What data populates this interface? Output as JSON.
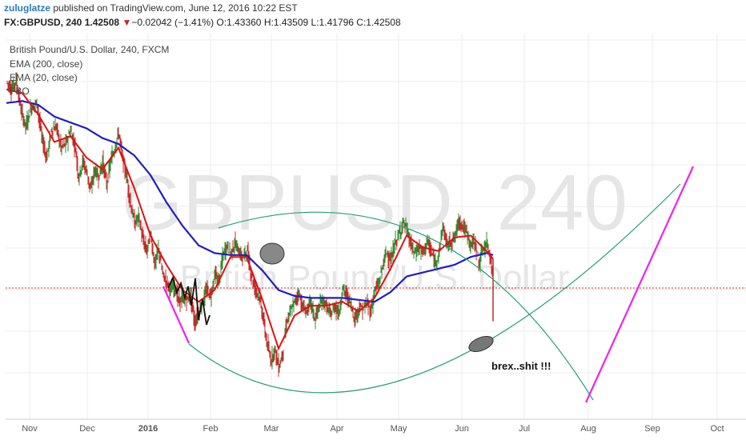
{
  "header": {
    "user": "zuluglatze",
    "published_text": "published on TradingView.com, June 12, 2016 10:22 EST",
    "symbol": "FX:GBPUSD, 240",
    "price": "1.42508",
    "change_arrow": "▼",
    "change": "−0.02042 (−1.41%)",
    "open": "O:1.43360",
    "high": "H:1.43509",
    "low": "L:1.41796",
    "close": "C:1.42508"
  },
  "legend": {
    "title": "British Pound/U.S. Dollar, 240, FXCM",
    "ema200": "EMA (200, close)",
    "ema20": "EMA (20, close)",
    "third": "FBO"
  },
  "watermark": {
    "line1": "GBPUSD, 240",
    "line2": "British Pound/U.S. Dollar"
  },
  "annotation": "brex..shit !!!",
  "colors": {
    "candle_up": "#2e8b2e",
    "candle_down": "#c62828",
    "ema200": "#1e1ec8",
    "ema20": "#e01010",
    "cup_arc": "#26a07a",
    "magenta": "#ee22ee",
    "price_line": "#e02020",
    "grid": "#eeeeee"
  },
  "chart_data": {
    "type": "line",
    "x_labels": [
      "Nov",
      "Dec",
      "2016",
      "Feb",
      "Mar",
      "Apr",
      "May",
      "Jun",
      "Jul",
      "Aug",
      "Sep",
      "Oct"
    ],
    "price_series": [
      [
        0,
        1.531
      ],
      [
        6,
        1.527
      ],
      [
        12,
        1.532
      ],
      [
        18,
        1.516
      ],
      [
        24,
        1.508
      ],
      [
        30,
        1.517
      ],
      [
        38,
        1.52
      ],
      [
        44,
        1.502
      ],
      [
        50,
        1.492
      ],
      [
        56,
        1.506
      ],
      [
        62,
        1.508
      ],
      [
        68,
        1.497
      ],
      [
        74,
        1.499
      ],
      [
        80,
        1.506
      ],
      [
        86,
        1.497
      ],
      [
        90,
        1.482
      ],
      [
        95,
        1.49
      ],
      [
        100,
        1.485
      ],
      [
        105,
        1.475
      ],
      [
        110,
        1.486
      ],
      [
        115,
        1.482
      ],
      [
        120,
        1.49
      ],
      [
        125,
        1.478
      ],
      [
        130,
        1.49
      ],
      [
        135,
        1.497
      ],
      [
        140,
        1.505
      ],
      [
        145,
        1.491
      ],
      [
        150,
        1.482
      ],
      [
        155,
        1.468
      ],
      [
        160,
        1.458
      ],
      [
        165,
        1.462
      ],
      [
        170,
        1.45
      ],
      [
        175,
        1.444
      ],
      [
        180,
        1.453
      ],
      [
        185,
        1.437
      ],
      [
        190,
        1.445
      ],
      [
        195,
        1.432
      ],
      [
        200,
        1.428
      ],
      [
        205,
        1.424
      ],
      [
        210,
        1.426
      ],
      [
        215,
        1.418
      ],
      [
        220,
        1.42
      ],
      [
        225,
        1.419
      ],
      [
        230,
        1.421
      ],
      [
        235,
        1.407
      ],
      [
        240,
        1.413
      ],
      [
        245,
        1.418
      ],
      [
        250,
        1.424
      ],
      [
        255,
        1.421
      ],
      [
        260,
        1.432
      ],
      [
        265,
        1.428
      ],
      [
        270,
        1.441
      ],
      [
        275,
        1.447
      ],
      [
        280,
        1.443
      ],
      [
        285,
        1.448
      ],
      [
        290,
        1.444
      ],
      [
        295,
        1.44
      ],
      [
        300,
        1.445
      ],
      [
        305,
        1.433
      ],
      [
        310,
        1.425
      ],
      [
        315,
        1.422
      ],
      [
        320,
        1.411
      ],
      [
        325,
        1.397
      ],
      [
        330,
        1.388
      ],
      [
        335,
        1.394
      ],
      [
        340,
        1.384
      ],
      [
        345,
        1.392
      ],
      [
        350,
        1.408
      ],
      [
        355,
        1.413
      ],
      [
        360,
        1.418
      ],
      [
        365,
        1.423
      ],
      [
        370,
        1.415
      ],
      [
        375,
        1.413
      ],
      [
        380,
        1.418
      ],
      [
        385,
        1.409
      ],
      [
        390,
        1.415
      ],
      [
        395,
        1.419
      ],
      [
        400,
        1.415
      ],
      [
        405,
        1.411
      ],
      [
        410,
        1.416
      ],
      [
        415,
        1.412
      ],
      [
        420,
        1.425
      ],
      [
        425,
        1.421
      ],
      [
        430,
        1.417
      ],
      [
        435,
        1.409
      ],
      [
        440,
        1.415
      ],
      [
        445,
        1.414
      ],
      [
        450,
        1.417
      ],
      [
        455,
        1.413
      ],
      [
        460,
        1.424
      ],
      [
        465,
        1.427
      ],
      [
        470,
        1.437
      ],
      [
        475,
        1.444
      ],
      [
        480,
        1.438
      ],
      [
        485,
        1.448
      ],
      [
        490,
        1.452
      ],
      [
        495,
        1.459
      ],
      [
        500,
        1.455
      ],
      [
        505,
        1.447
      ],
      [
        510,
        1.443
      ],
      [
        515,
        1.446
      ],
      [
        520,
        1.443
      ],
      [
        525,
        1.449
      ],
      [
        530,
        1.444
      ],
      [
        535,
        1.438
      ],
      [
        540,
        1.443
      ],
      [
        545,
        1.457
      ],
      [
        550,
        1.447
      ],
      [
        555,
        1.449
      ],
      [
        560,
        1.451
      ],
      [
        565,
        1.46
      ],
      [
        570,
        1.457
      ],
      [
        575,
        1.453
      ],
      [
        580,
        1.447
      ],
      [
        585,
        1.449
      ],
      [
        590,
        1.437
      ],
      [
        595,
        1.445
      ],
      [
        600,
        1.448
      ],
      [
        605,
        1.44
      ],
      [
        608,
        1.425
      ]
    ],
    "ema200_series": [
      [
        0,
        1.52
      ],
      [
        20,
        1.521
      ],
      [
        40,
        1.519
      ],
      [
        60,
        1.513
      ],
      [
        80,
        1.51
      ],
      [
        100,
        1.507
      ],
      [
        120,
        1.502
      ],
      [
        140,
        1.499
      ],
      [
        160,
        1.493
      ],
      [
        180,
        1.483
      ],
      [
        200,
        1.469
      ],
      [
        220,
        1.457
      ],
      [
        240,
        1.447
      ],
      [
        260,
        1.443
      ],
      [
        280,
        1.442
      ],
      [
        300,
        1.442
      ],
      [
        320,
        1.434
      ],
      [
        340,
        1.424
      ],
      [
        360,
        1.421
      ],
      [
        380,
        1.42
      ],
      [
        400,
        1.42
      ],
      [
        420,
        1.42
      ],
      [
        440,
        1.419
      ],
      [
        460,
        1.418
      ],
      [
        480,
        1.423
      ],
      [
        500,
        1.431
      ],
      [
        520,
        1.433
      ],
      [
        540,
        1.435
      ],
      [
        560,
        1.437
      ],
      [
        580,
        1.441
      ],
      [
        600,
        1.443
      ],
      [
        608,
        1.442
      ]
    ],
    "ema20_series": [
      [
        0,
        1.527
      ],
      [
        20,
        1.525
      ],
      [
        40,
        1.514
      ],
      [
        60,
        1.5
      ],
      [
        80,
        1.503
      ],
      [
        100,
        1.492
      ],
      [
        120,
        1.486
      ],
      [
        140,
        1.497
      ],
      [
        160,
        1.476
      ],
      [
        180,
        1.452
      ],
      [
        200,
        1.437
      ],
      [
        220,
        1.424
      ],
      [
        240,
        1.418
      ],
      [
        260,
        1.424
      ],
      [
        280,
        1.441
      ],
      [
        300,
        1.441
      ],
      [
        320,
        1.419
      ],
      [
        340,
        1.394
      ],
      [
        360,
        1.411
      ],
      [
        380,
        1.416
      ],
      [
        400,
        1.416
      ],
      [
        420,
        1.418
      ],
      [
        440,
        1.413
      ],
      [
        460,
        1.42
      ],
      [
        480,
        1.435
      ],
      [
        500,
        1.452
      ],
      [
        520,
        1.446
      ],
      [
        540,
        1.444
      ],
      [
        560,
        1.451
      ],
      [
        580,
        1.452
      ],
      [
        600,
        1.444
      ],
      [
        608,
        1.44
      ]
    ],
    "current_price": 1.42508,
    "y_range_approx": [
      1.37,
      1.54
    ]
  }
}
